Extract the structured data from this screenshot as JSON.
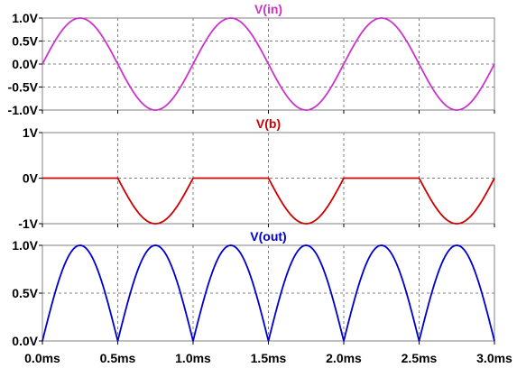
{
  "chart_data": [
    {
      "type": "line",
      "title": "V(in)",
      "color": "#cc33cc",
      "series": [
        {
          "name": "V(in)",
          "function": "sine",
          "amplitude": 1.0,
          "frequency_hz": 1000,
          "phase": "0"
        }
      ],
      "xlim": [
        0,
        3.0
      ],
      "ylim": [
        -1.0,
        1.0
      ],
      "yticks": [
        1.0,
        0.5,
        0.0,
        -0.5,
        -1.0
      ],
      "ytick_labels": [
        "1.0V",
        "0.5V",
        "0.0V",
        "-0.5V",
        "-1.0V"
      ],
      "grid": true
    },
    {
      "type": "line",
      "title": "V(b)",
      "color": "#cc0000",
      "series": [
        {
          "name": "V(b)",
          "function": "negative half-wave of V(in), 0V when V(in) > 0",
          "amplitude": 1.0,
          "frequency_hz": 1000
        }
      ],
      "xlim": [
        0,
        3.0
      ],
      "ylim": [
        -1.0,
        1.0
      ],
      "yticks": [
        1,
        0,
        -1
      ],
      "ytick_labels": [
        "1V",
        "0V",
        "-1V"
      ],
      "grid": true
    },
    {
      "type": "line",
      "title": "V(out)",
      "color": "#0000cc",
      "series": [
        {
          "name": "V(out)",
          "function": "full-wave rectified |V(in)|",
          "amplitude": 1.0,
          "frequency_hz": 1000
        }
      ],
      "xlim": [
        0,
        3.0
      ],
      "ylim": [
        0.0,
        1.0
      ],
      "yticks": [
        1.0,
        0.5,
        0.0
      ],
      "ytick_labels": [
        "1.0V",
        "0.5V",
        "0.0V"
      ],
      "grid": true
    }
  ],
  "x_axis": {
    "ticks": [
      0.0,
      0.5,
      1.0,
      1.5,
      2.0,
      2.5,
      3.0
    ],
    "tick_labels": [
      "0.0ms",
      "0.5ms",
      "1.0ms",
      "1.5ms",
      "2.0ms",
      "2.5ms",
      "3.0ms"
    ]
  }
}
